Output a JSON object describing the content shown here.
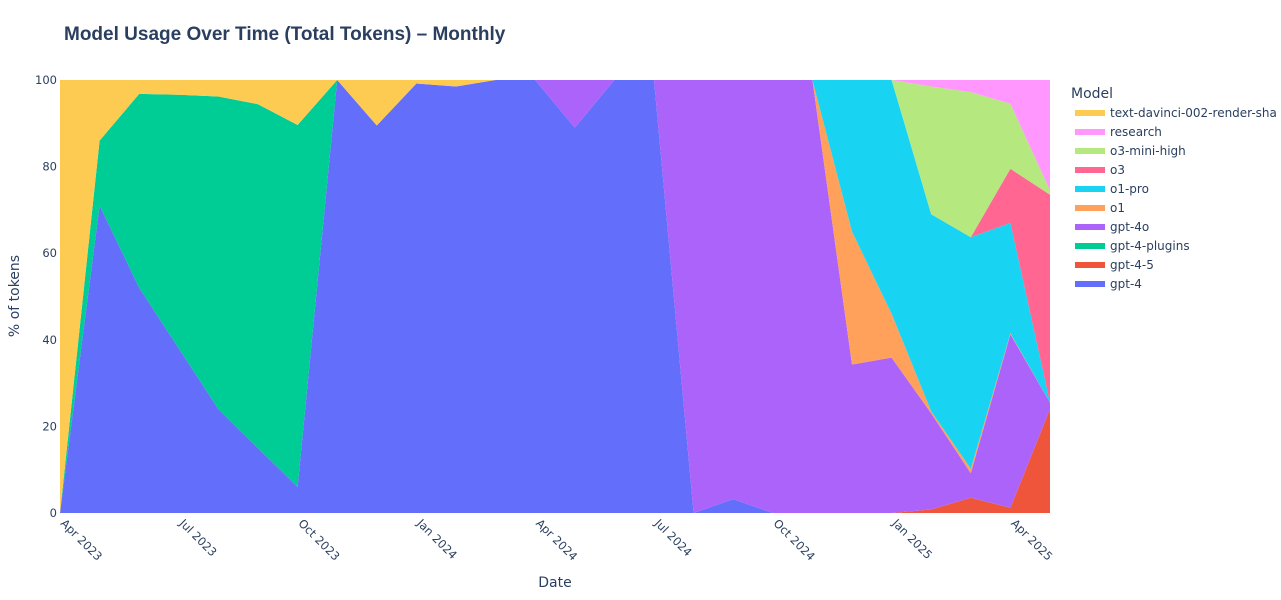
{
  "chart_data": {
    "type": "area",
    "stacking": "percent",
    "title": "Model Usage Over Time (Total Tokens) – Monthly",
    "xlabel": "Date",
    "ylabel": "% of tokens",
    "ylim": [
      0,
      100
    ],
    "y_ticks": [
      "0",
      "20",
      "40",
      "60",
      "80",
      "100"
    ],
    "x_ticks": [
      {
        "date": "2023-04",
        "label": "Apr 2023"
      },
      {
        "date": "2023-07",
        "label": "Jul 2023"
      },
      {
        "date": "2023-10",
        "label": "Oct 2023"
      },
      {
        "date": "2024-01",
        "label": "Jan 2024"
      },
      {
        "date": "2024-04",
        "label": "Apr 2024"
      },
      {
        "date": "2024-07",
        "label": "Jul 2024"
      },
      {
        "date": "2024-10",
        "label": "Oct 2024"
      },
      {
        "date": "2025-01",
        "label": "Jan 2025"
      },
      {
        "date": "2025-04",
        "label": "Apr 2025"
      }
    ],
    "x": [
      "2023-04",
      "2023-05",
      "2023-06",
      "2023-07",
      "2023-08",
      "2023-09",
      "2023-10",
      "2023-11",
      "2023-12",
      "2024-01",
      "2024-02",
      "2024-03",
      "2024-04",
      "2024-05",
      "2024-06",
      "2024-07",
      "2024-08",
      "2024-09",
      "2024-10",
      "2024-11",
      "2024-12",
      "2025-01",
      "2025-02",
      "2025-03",
      "2025-04",
      "2025-05"
    ],
    "grid": false,
    "legend_title": "Model",
    "legend_position": "right",
    "series": [
      {
        "name": "gpt-4",
        "color": "#636efa",
        "values": [
          0,
          71,
          52,
          38,
          24,
          15,
          6,
          100,
          89.5,
          99.2,
          98.5,
          100,
          100,
          89,
          100,
          100,
          0,
          3.2,
          0,
          0,
          0,
          0,
          0,
          0,
          0,
          0
        ]
      },
      {
        "name": "gpt-4-5",
        "color": "#ef553b",
        "values": [
          0,
          0,
          0,
          0,
          0,
          0,
          0,
          0,
          0,
          0,
          0,
          0,
          0,
          0,
          0,
          0,
          0,
          0,
          0,
          0,
          0,
          0,
          0.8,
          3.5,
          1.2,
          24
        ]
      },
      {
        "name": "gpt-4-plugins",
        "color": "#00cc96",
        "values": [
          0,
          15,
          44.8,
          58.6,
          72.2,
          79.4,
          83.6,
          0,
          0,
          0,
          0,
          0,
          0,
          0,
          0,
          0,
          0,
          0,
          0,
          0,
          0,
          0,
          0,
          0,
          0,
          0
        ]
      },
      {
        "name": "gpt-4o",
        "color": "#ab63fa",
        "values": [
          0,
          0,
          0,
          0,
          0,
          0,
          0,
          0,
          0,
          0,
          0,
          0,
          0,
          11,
          0,
          0,
          100,
          96.8,
          100,
          100,
          34.3,
          35.9,
          22.2,
          5.7,
          40.1,
          1.5
        ]
      },
      {
        "name": "o1",
        "color": "#ffa15a",
        "values": [
          0,
          0,
          0,
          0,
          0,
          0,
          0,
          0,
          0,
          0,
          0,
          0,
          0,
          0,
          0,
          0,
          0,
          0,
          0,
          0,
          30.7,
          10.1,
          0.5,
          1,
          0.2,
          0
        ]
      },
      {
        "name": "o1-pro",
        "color": "#19d3f3",
        "values": [
          0,
          0,
          0,
          0,
          0,
          0,
          0,
          0,
          0,
          0,
          0,
          0,
          0,
          0,
          0,
          0,
          0,
          0,
          0,
          0,
          35,
          54,
          45.5,
          53.5,
          25.5,
          0
        ]
      },
      {
        "name": "o3",
        "color": "#ff6692",
        "values": [
          0,
          0,
          0,
          0,
          0,
          0,
          0,
          0,
          0,
          0,
          0,
          0,
          0,
          0,
          0,
          0,
          0,
          0,
          0,
          0,
          0,
          0,
          0,
          0,
          12.5,
          48
        ]
      },
      {
        "name": "o3-mini-high",
        "color": "#b6e880",
        "values": [
          0,
          0,
          0,
          0,
          0,
          0,
          0,
          0,
          0,
          0,
          0,
          0,
          0,
          0,
          0,
          0,
          0,
          0,
          0,
          0,
          0,
          0,
          29.5,
          33.5,
          15,
          1
        ]
      },
      {
        "name": "research",
        "color": "#ff97ff",
        "values": [
          0,
          0,
          0,
          0,
          0,
          0,
          0,
          0,
          0,
          0,
          0,
          0,
          0,
          0,
          0,
          0,
          0,
          0,
          0,
          0,
          0,
          0,
          1.5,
          2.8,
          5.5,
          25.5
        ]
      },
      {
        "name": "text-davinci-002-render-sha",
        "color": "#fecb52",
        "values": [
          100,
          14,
          3.2,
          3.4,
          3.8,
          5.6,
          10.4,
          0,
          10.5,
          0.8,
          1.5,
          0,
          0,
          0,
          0,
          0,
          0,
          0,
          0,
          0,
          0,
          0,
          0,
          0,
          0,
          0
        ]
      }
    ]
  }
}
